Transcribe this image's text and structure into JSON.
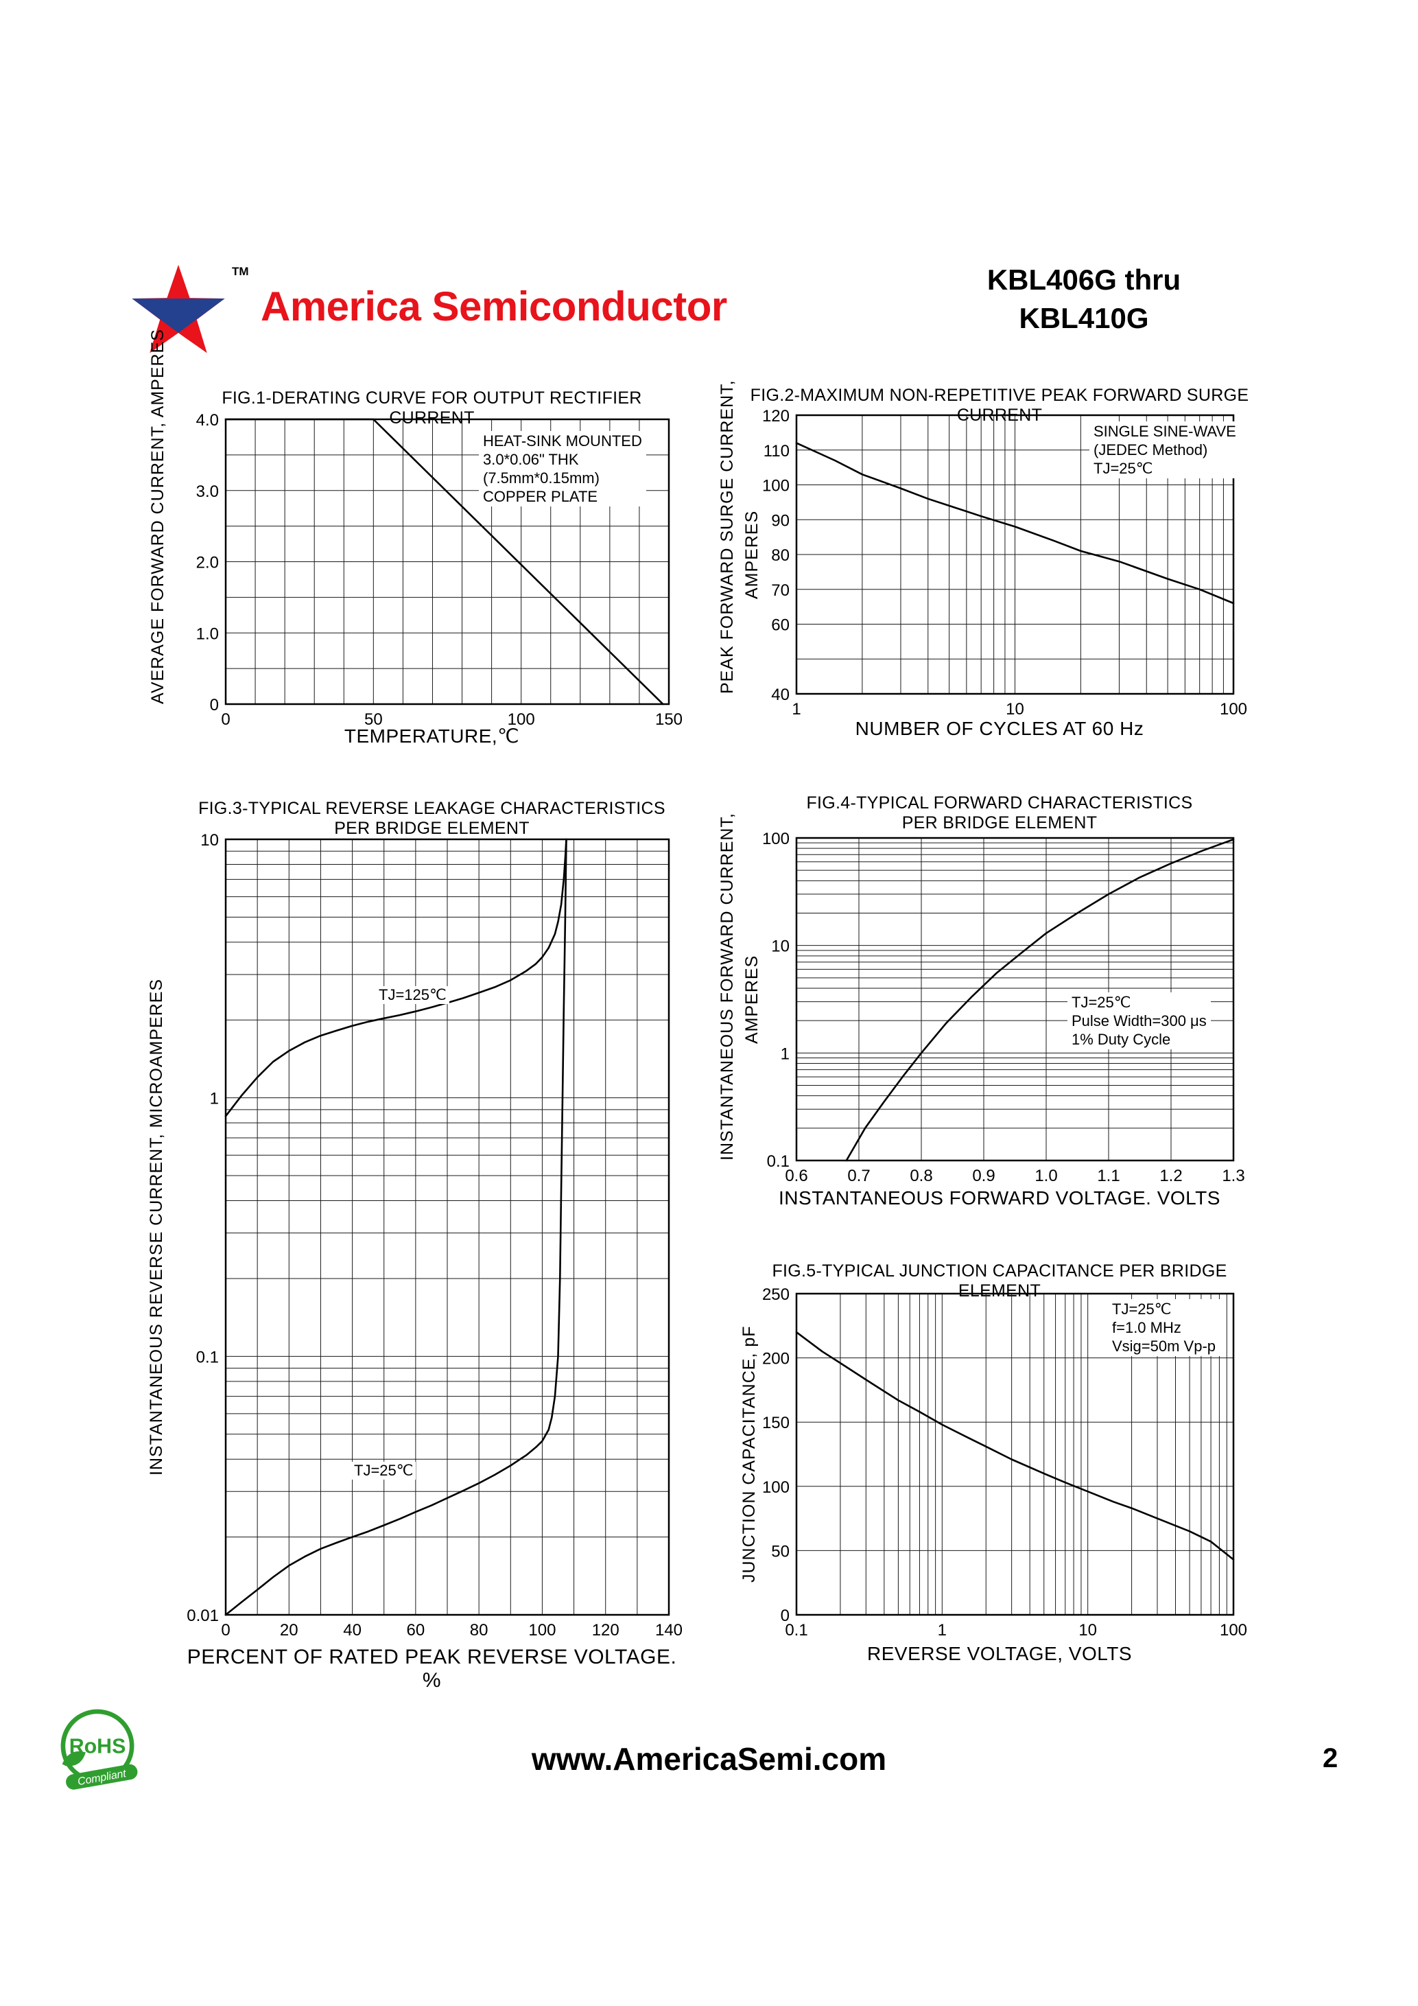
{
  "header": {
    "brand": "America Semiconductor",
    "trademark": "TM",
    "part_line1": "KBL406G thru",
    "part_line2": "KBL410G"
  },
  "footer": {
    "website": "www.AmericaSemi.com",
    "page_number": "2",
    "rohs_title": "RoHS",
    "rohs_subtitle": "Compliant"
  },
  "colors": {
    "brand_red": "#e8131b",
    "rohs_green": "#2f9e2f",
    "line_black": "#1a1a1a"
  },
  "chart_data": [
    {
      "id": "fig1",
      "type": "line",
      "title": "FIG.1-DERATING CURVE FOR OUTPUT RECTIFIER CURRENT",
      "xlabel": "TEMPERATURE,℃",
      "ylabel": "AVERAGE FORWARD CURRENT, AMPERES",
      "xscale": "linear",
      "yscale": "linear",
      "xlim": [
        0,
        150
      ],
      "ylim": [
        0,
        4
      ],
      "xgrid_step": 10,
      "ygrid_step": 0.5,
      "grid": true,
      "xticks": [
        {
          "v": 0,
          "label": "0"
        },
        {
          "v": 50,
          "label": "50"
        },
        {
          "v": 100,
          "label": "100"
        },
        {
          "v": 150,
          "label": "150"
        }
      ],
      "yticks": [
        {
          "v": 4,
          "label": "4.0"
        },
        {
          "v": 3,
          "label": "3.0"
        },
        {
          "v": 2,
          "label": "2.0"
        },
        {
          "v": 1,
          "label": "1.0"
        },
        {
          "v": 0,
          "label": "0"
        }
      ],
      "annotation": [
        "HEAT-SINK MOUNTED",
        "3.0*0.06\" THK",
        "(7.5mm*0.15mm)",
        "COPPER PLATE"
      ],
      "series": [
        {
          "name": "derating-curve",
          "points": [
            [
              0,
              4
            ],
            [
              50,
              4
            ],
            [
              148,
              0
            ]
          ]
        }
      ]
    },
    {
      "id": "fig2",
      "type": "line",
      "title": "FIG.2-MAXIMUM NON-REPETITIVE PEAK FORWARD SURGE CURRENT",
      "xlabel": "NUMBER OF CYCLES AT 60 Hz",
      "ylabel": "PEAK FORWARD SURGE CURRENT,",
      "ylabel2": "AMPERES",
      "xscale": "log",
      "yscale": "linear",
      "xlim": [
        1,
        100
      ],
      "ylim": [
        40,
        120
      ],
      "ygrid_step": 10,
      "grid": true,
      "xticks": [
        {
          "v": 1,
          "label": "1"
        },
        {
          "v": 10,
          "label": "10"
        },
        {
          "v": 100,
          "label": "100"
        }
      ],
      "yticks": [
        {
          "v": 120,
          "label": "120"
        },
        {
          "v": 110,
          "label": "110"
        },
        {
          "v": 100,
          "label": "100"
        },
        {
          "v": 90,
          "label": "90"
        },
        {
          "v": 80,
          "label": "80"
        },
        {
          "v": 70,
          "label": "70"
        },
        {
          "v": 60,
          "label": "60"
        },
        {
          "v": 40,
          "label": "40"
        }
      ],
      "annotation": [
        "SINGLE SINE-WAVE",
        "(JEDEC Method)",
        "TJ=25℃"
      ],
      "series": [
        {
          "name": "surge-current",
          "points": [
            [
              1,
              112
            ],
            [
              1.5,
              107
            ],
            [
              2,
              103
            ],
            [
              3,
              99
            ],
            [
              4,
              96
            ],
            [
              5,
              94
            ],
            [
              7,
              91
            ],
            [
              10,
              88
            ],
            [
              15,
              84
            ],
            [
              20,
              81
            ],
            [
              30,
              78
            ],
            [
              50,
              73
            ],
            [
              70,
              70
            ],
            [
              100,
              66
            ]
          ]
        }
      ]
    },
    {
      "id": "fig3",
      "type": "line",
      "title": "FIG.3-TYPICAL REVERSE LEAKAGE CHARACTERISTICS",
      "title2": "PER BRIDGE ELEMENT",
      "xlabel": "PERCENT OF RATED PEAK REVERSE VOLTAGE. %",
      "ylabel": "INSTANTANEOUS REVERSE CURRENT, MICROAMPERES",
      "xscale": "linear",
      "yscale": "log",
      "xlim": [
        0,
        140
      ],
      "ylim": [
        0.01,
        10
      ],
      "xgrid_step": 10,
      "grid": true,
      "xticks": [
        {
          "v": 0,
          "label": "0"
        },
        {
          "v": 20,
          "label": "20"
        },
        {
          "v": 40,
          "label": "40"
        },
        {
          "v": 60,
          "label": "60"
        },
        {
          "v": 80,
          "label": "80"
        },
        {
          "v": 100,
          "label": "100"
        },
        {
          "v": 120,
          "label": "120"
        },
        {
          "v": 140,
          "label": "140"
        }
      ],
      "yticks": [
        {
          "v": 10,
          "label": "10"
        },
        {
          "v": 1,
          "label": "1"
        },
        {
          "v": 0.1,
          "label": "0.1"
        },
        {
          "v": 0.01,
          "label": "0.01"
        }
      ],
      "series": [
        {
          "name": "TJ=125℃",
          "points": [
            [
              0,
              0.85
            ],
            [
              5,
              1.02
            ],
            [
              10,
              1.2
            ],
            [
              15,
              1.38
            ],
            [
              20,
              1.52
            ],
            [
              25,
              1.64
            ],
            [
              30,
              1.74
            ],
            [
              35,
              1.82
            ],
            [
              40,
              1.9
            ],
            [
              45,
              1.97
            ],
            [
              50,
              2.03
            ],
            [
              55,
              2.09
            ],
            [
              60,
              2.16
            ],
            [
              65,
              2.24
            ],
            [
              70,
              2.33
            ],
            [
              75,
              2.43
            ],
            [
              80,
              2.55
            ],
            [
              85,
              2.68
            ],
            [
              90,
              2.85
            ],
            [
              95,
              3.1
            ],
            [
              98,
              3.3
            ],
            [
              100,
              3.5
            ],
            [
              102,
              3.8
            ],
            [
              104,
              4.3
            ],
            [
              105,
              4.8
            ],
            [
              106,
              5.6
            ],
            [
              106.8,
              7
            ],
            [
              107.3,
              8.6
            ],
            [
              107.6,
              10
            ]
          ]
        },
        {
          "name": "TJ=25℃",
          "points": [
            [
              0,
              0.01
            ],
            [
              5,
              0.0112
            ],
            [
              10,
              0.0125
            ],
            [
              15,
              0.014
            ],
            [
              20,
              0.0155
            ],
            [
              25,
              0.0168
            ],
            [
              30,
              0.018
            ],
            [
              35,
              0.019
            ],
            [
              40,
              0.02
            ],
            [
              45,
              0.021
            ],
            [
              50,
              0.0222
            ],
            [
              55,
              0.0235
            ],
            [
              60,
              0.025
            ],
            [
              65,
              0.0265
            ],
            [
              70,
              0.0283
            ],
            [
              75,
              0.0302
            ],
            [
              80,
              0.0323
            ],
            [
              85,
              0.0348
            ],
            [
              90,
              0.0378
            ],
            [
              95,
              0.0415
            ],
            [
              98,
              0.0445
            ],
            [
              100,
              0.047
            ],
            [
              102,
              0.052
            ],
            [
              103,
              0.058
            ],
            [
              104,
              0.07
            ],
            [
              105,
              0.1
            ],
            [
              105.6,
              0.2
            ],
            [
              106,
              0.45
            ],
            [
              106.4,
              1.0
            ],
            [
              106.8,
              2.2
            ],
            [
              107.2,
              4.5
            ],
            [
              107.6,
              10
            ]
          ]
        }
      ]
    },
    {
      "id": "fig4",
      "type": "line",
      "title": "FIG.4-TYPICAL FORWARD CHARACTERISTICS",
      "title2": "PER BRIDGE ELEMENT",
      "xlabel": "INSTANTANEOUS FORWARD VOLTAGE. VOLTS",
      "ylabel": "INSTANTANEOUS FORWARD CURRENT,",
      "ylabel2": "AMPERES",
      "xscale": "linear",
      "yscale": "log",
      "xlim": [
        0.6,
        1.3
      ],
      "ylim": [
        0.1,
        100
      ],
      "xgrid_step": 0.1,
      "grid": true,
      "xticks": [
        {
          "v": 0.6,
          "label": "0.6"
        },
        {
          "v": 0.7,
          "label": "0.7"
        },
        {
          "v": 0.8,
          "label": "0.8"
        },
        {
          "v": 0.9,
          "label": "0.9"
        },
        {
          "v": 1.0,
          "label": "1.0"
        },
        {
          "v": 1.1,
          "label": "1.1"
        },
        {
          "v": 1.2,
          "label": "1.2"
        },
        {
          "v": 1.3,
          "label": "1.3"
        }
      ],
      "yticks": [
        {
          "v": 100,
          "label": "100"
        },
        {
          "v": 10,
          "label": "10"
        },
        {
          "v": 1,
          "label": "1"
        },
        {
          "v": 0.1,
          "label": "0.1"
        }
      ],
      "annotation": [
        "TJ=25℃",
        "Pulse Width=300 μs",
        "1% Duty Cycle"
      ],
      "series": [
        {
          "name": "forward-characteristic",
          "points": [
            [
              0.68,
              0.1
            ],
            [
              0.71,
              0.2
            ],
            [
              0.74,
              0.35
            ],
            [
              0.77,
              0.6
            ],
            [
              0.8,
              1.0
            ],
            [
              0.84,
              1.9
            ],
            [
              0.88,
              3.3
            ],
            [
              0.92,
              5.5
            ],
            [
              0.96,
              8.5
            ],
            [
              1.0,
              13
            ],
            [
              1.05,
              20
            ],
            [
              1.1,
              30
            ],
            [
              1.15,
              43
            ],
            [
              1.2,
              58
            ],
            [
              1.25,
              76
            ],
            [
              1.3,
              97
            ]
          ]
        }
      ]
    },
    {
      "id": "fig5",
      "type": "line",
      "title": "FIG.5-TYPICAL JUNCTION CAPACITANCE PER BRIDGE ELEMENT",
      "xlabel": "REVERSE VOLTAGE, VOLTS",
      "ylabel": "JUNCTION CAPACITANCE, pF",
      "xscale": "log",
      "yscale": "linear",
      "xlim": [
        0.1,
        100
      ],
      "ylim": [
        0,
        250
      ],
      "ygrid_step": 50,
      "grid": true,
      "xticks": [
        {
          "v": 0.1,
          "label": "0.1"
        },
        {
          "v": 1,
          "label": "1"
        },
        {
          "v": 10,
          "label": "10"
        },
        {
          "v": 100,
          "label": "100"
        }
      ],
      "yticks": [
        {
          "v": 250,
          "label": "250"
        },
        {
          "v": 200,
          "label": "200"
        },
        {
          "v": 150,
          "label": "150"
        },
        {
          "v": 100,
          "label": "100"
        },
        {
          "v": 50,
          "label": "50"
        },
        {
          "v": 0,
          "label": "0"
        }
      ],
      "annotation": [
        "TJ=25℃",
        "f=1.0 MHz",
        "Vsig=50m Vp-p"
      ],
      "series": [
        {
          "name": "junction-capacitance",
          "points": [
            [
              0.1,
              220
            ],
            [
              0.15,
              205
            ],
            [
              0.2,
              196
            ],
            [
              0.3,
              183
            ],
            [
              0.5,
              167
            ],
            [
              0.7,
              158
            ],
            [
              1,
              148
            ],
            [
              1.5,
              138
            ],
            [
              2,
              131
            ],
            [
              3,
              121
            ],
            [
              5,
              110
            ],
            [
              7,
              103
            ],
            [
              10,
              96
            ],
            [
              15,
              88
            ],
            [
              20,
              83
            ],
            [
              30,
              75
            ],
            [
              50,
              65
            ],
            [
              70,
              57
            ],
            [
              100,
              43
            ]
          ]
        }
      ]
    }
  ]
}
